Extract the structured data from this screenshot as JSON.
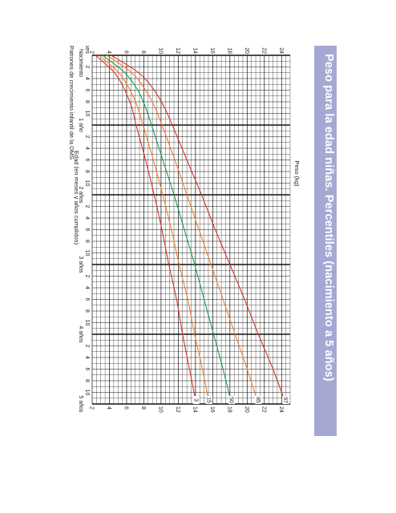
{
  "title": "Peso para la edad niñas. Percentiles (nacimiento a 5 años)",
  "footer": "Patrones de crecimiento infantil de la OMS",
  "colors": {
    "banner": "#a6a8d4",
    "grid": "#111111",
    "p3": "#d8322a",
    "p15": "#f07d2c",
    "p50": "#159c4e",
    "p85": "#f07d2c",
    "p97": "#d8322a"
  },
  "chart_data": {
    "type": "line",
    "title": "Peso para la edad niñas. Percentiles (nacimiento a 5 años)",
    "ylabel": "Peso (kg)",
    "xlabel": "Edad (en meses y años cumplidos)",
    "x_unit_label": "Meses",
    "ylim": [
      2,
      25
    ],
    "xlim": [
      0,
      60
    ],
    "y_ticks": [
      2,
      4,
      6,
      8,
      10,
      12,
      14,
      16,
      18,
      20,
      22,
      24
    ],
    "month_tick_labels": [
      "2",
      "4",
      "6",
      "8",
      "10"
    ],
    "year_labels": [
      "Nacimiento",
      "1 año",
      "2 años",
      "3 años",
      "4 años",
      "5 años"
    ],
    "grid": true,
    "x": [
      0,
      3,
      6,
      9,
      12,
      18,
      24,
      30,
      36,
      42,
      48,
      54,
      60
    ],
    "series": [
      {
        "name": "3",
        "values": [
          2.4,
          4.6,
          5.8,
          6.6,
          7.1,
          8.2,
          9.2,
          10.1,
          10.9,
          11.8,
          12.5,
          13.3,
          14.1
        ]
      },
      {
        "name": "15",
        "values": [
          2.8,
          5.1,
          6.4,
          7.3,
          7.9,
          9.1,
          10.2,
          11.2,
          12.1,
          13.1,
          13.9,
          14.8,
          15.6
        ]
      },
      {
        "name": "50",
        "values": [
          3.2,
          5.8,
          7.3,
          8.2,
          8.9,
          10.2,
          11.5,
          12.7,
          13.9,
          15.0,
          16.1,
          17.2,
          18.2
        ]
      },
      {
        "name": "85",
        "values": [
          3.7,
          6.6,
          8.2,
          9.3,
          10.1,
          11.6,
          13.0,
          14.4,
          15.8,
          17.2,
          18.6,
          20.0,
          21.3
        ]
      },
      {
        "name": "97",
        "values": [
          4.2,
          7.4,
          9.2,
          10.4,
          11.3,
          13.0,
          14.7,
          16.3,
          18.0,
          19.7,
          21.3,
          23.0,
          24.5
        ]
      }
    ]
  }
}
